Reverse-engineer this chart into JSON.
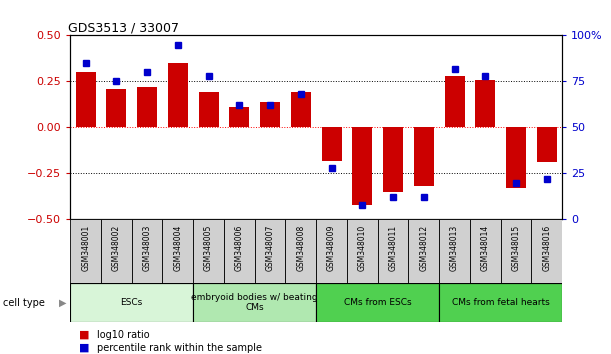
{
  "title": "GDS3513 / 33007",
  "samples": [
    "GSM348001",
    "GSM348002",
    "GSM348003",
    "GSM348004",
    "GSM348005",
    "GSM348006",
    "GSM348007",
    "GSM348008",
    "GSM348009",
    "GSM348010",
    "GSM348011",
    "GSM348012",
    "GSM348013",
    "GSM348014",
    "GSM348015",
    "GSM348016"
  ],
  "log10_ratio": [
    0.3,
    0.21,
    0.22,
    0.35,
    0.19,
    0.11,
    0.14,
    0.19,
    -0.18,
    -0.42,
    -0.35,
    -0.32,
    0.28,
    0.26,
    -0.33,
    -0.19
  ],
  "percentile_rank": [
    85,
    75,
    80,
    95,
    78,
    62,
    62,
    68,
    28,
    8,
    12,
    12,
    82,
    78,
    20,
    22
  ],
  "cell_type_groups": [
    {
      "label": "ESCs",
      "start": 0,
      "end": 3,
      "color": "#d8f5d8"
    },
    {
      "label": "embryoid bodies w/ beating\nCMs",
      "start": 4,
      "end": 7,
      "color": "#b0e8b0"
    },
    {
      "label": "CMs from ESCs",
      "start": 8,
      "end": 11,
      "color": "#50d050"
    },
    {
      "label": "CMs from fetal hearts",
      "start": 12,
      "end": 15,
      "color": "#50d050"
    }
  ],
  "bar_color": "#cc0000",
  "dot_color": "#0000cc",
  "ylim": [
    -0.5,
    0.5
  ],
  "y2lim": [
    0,
    100
  ],
  "yticks": [
    -0.5,
    -0.25,
    0,
    0.25,
    0.5
  ],
  "y2ticks": [
    0,
    25,
    50,
    75,
    100
  ],
  "hline_dotted": [
    -0.25,
    0.25
  ],
  "hline_dotted_red": [
    0
  ],
  "ylabel_color": "#cc0000",
  "y2label_color": "#0000cc",
  "background_color": "#ffffff"
}
